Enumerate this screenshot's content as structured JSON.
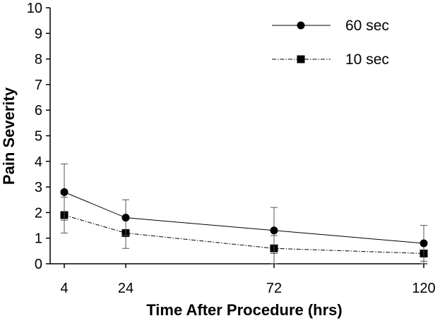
{
  "chart_data": {
    "type": "line",
    "title": "",
    "xlabel": "Time After Procedure (hrs)",
    "ylabel": "Pain Severity",
    "x": [
      4,
      24,
      72,
      120
    ],
    "x_tick_labels": [
      "4",
      "24",
      "72",
      "120"
    ],
    "x_scale": "categorical-evenly-spaced",
    "ylim": [
      0,
      10
    ],
    "y_ticks": [
      0,
      1,
      2,
      3,
      4,
      5,
      6,
      7,
      8,
      9,
      10
    ],
    "y_tick_labels": [
      "0",
      "1",
      "2",
      "3",
      "4",
      "5",
      "6",
      "7",
      "8",
      "9",
      "10"
    ],
    "grid": false,
    "legend_position": "top-right",
    "series": [
      {
        "name": "60 sec",
        "values": [
          2.8,
          1.8,
          1.3,
          0.8
        ],
        "error_upper": [
          3.9,
          2.5,
          2.2,
          1.5
        ],
        "error_lower": [
          1.7,
          1.1,
          0.4,
          0.1
        ],
        "marker": "circle",
        "line_style": "solid"
      },
      {
        "name": "10 sec",
        "values": [
          1.9,
          1.2,
          0.6,
          0.4
        ],
        "error_upper": [
          2.6,
          1.8,
          1.1,
          0.8
        ],
        "error_lower": [
          1.2,
          0.6,
          0.0,
          0.0
        ],
        "marker": "square",
        "line_style": "dash-dot"
      }
    ]
  }
}
